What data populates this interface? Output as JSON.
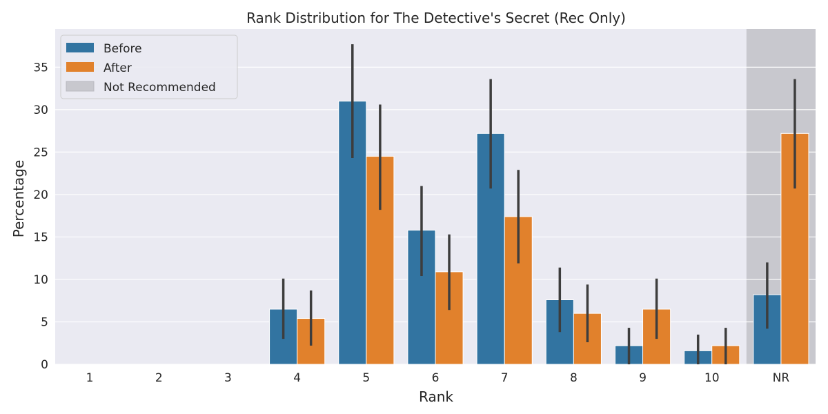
{
  "chart_data": {
    "type": "bar",
    "title": "Rank Distribution for The Detective's Secret (Rec Only)",
    "xlabel": "Rank",
    "ylabel": "Percentage",
    "categories": [
      "1",
      "2",
      "3",
      "4",
      "5",
      "6",
      "7",
      "8",
      "9",
      "10",
      "NR"
    ],
    "ylim": [
      0,
      39.5
    ],
    "yticks": [
      0,
      5,
      10,
      15,
      20,
      25,
      30,
      35
    ],
    "grid": true,
    "legend_position": "top-left",
    "series": [
      {
        "name": "Before",
        "color": "#3274a1",
        "values": [
          0,
          0,
          0,
          6.5,
          31.0,
          15.8,
          27.2,
          7.6,
          2.2,
          1.6,
          8.2
        ],
        "err_low": [
          0,
          0,
          0,
          3.0,
          24.3,
          10.4,
          20.7,
          3.8,
          0,
          0,
          4.2
        ],
        "err_high": [
          0,
          0,
          0,
          10.1,
          37.7,
          21.0,
          33.6,
          11.4,
          4.3,
          3.5,
          12.0
        ]
      },
      {
        "name": "After",
        "color": "#e1812c",
        "values": [
          0,
          0,
          0,
          5.4,
          24.5,
          10.9,
          17.4,
          6.0,
          6.5,
          2.2,
          27.2
        ],
        "err_low": [
          0,
          0,
          0,
          2.2,
          18.2,
          6.4,
          11.9,
          2.6,
          3.0,
          0,
          20.7
        ],
        "err_high": [
          0,
          0,
          0,
          8.7,
          30.6,
          15.3,
          22.9,
          9.4,
          10.1,
          4.3,
          33.6
        ]
      }
    ],
    "highlight": {
      "category": "NR",
      "label": "Not Recommended",
      "color": "#c8c8ce"
    }
  }
}
